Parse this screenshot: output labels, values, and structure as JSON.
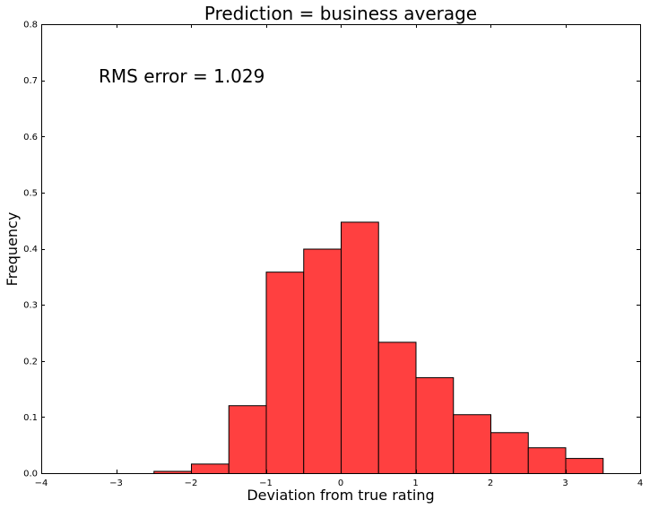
{
  "chart_data": {
    "type": "bar",
    "title": "Prediction = business average",
    "xlabel": "Deviation from true rating",
    "ylabel": "Frequency",
    "annotation": "RMS error = 1.029",
    "xlim": [
      -4,
      4
    ],
    "ylim": [
      0,
      0.8
    ],
    "xticks": [
      "−4",
      "−3",
      "−2",
      "−1",
      "0",
      "1",
      "2",
      "3",
      "4"
    ],
    "xtick_values": [
      -4,
      -3,
      -2,
      -1,
      0,
      1,
      2,
      3,
      4
    ],
    "yticks": [
      "0.0",
      "0.1",
      "0.2",
      "0.3",
      "0.4",
      "0.5",
      "0.6",
      "0.7",
      "0.8"
    ],
    "ytick_values": [
      0,
      0.1,
      0.2,
      0.3,
      0.4,
      0.5,
      0.6,
      0.7,
      0.8
    ],
    "bin_edges": [
      -2.5,
      -2.0,
      -1.5,
      -1.0,
      -0.5,
      0.0,
      0.5,
      1.0,
      1.5,
      2.0,
      2.5,
      3.0,
      3.5
    ],
    "values": [
      0.004,
      0.017,
      0.121,
      0.359,
      0.4,
      0.448,
      0.234,
      0.171,
      0.105,
      0.073,
      0.046,
      0.027
    ],
    "bar_color": "#ff4040",
    "edge_color": "#000000",
    "grid": false
  }
}
